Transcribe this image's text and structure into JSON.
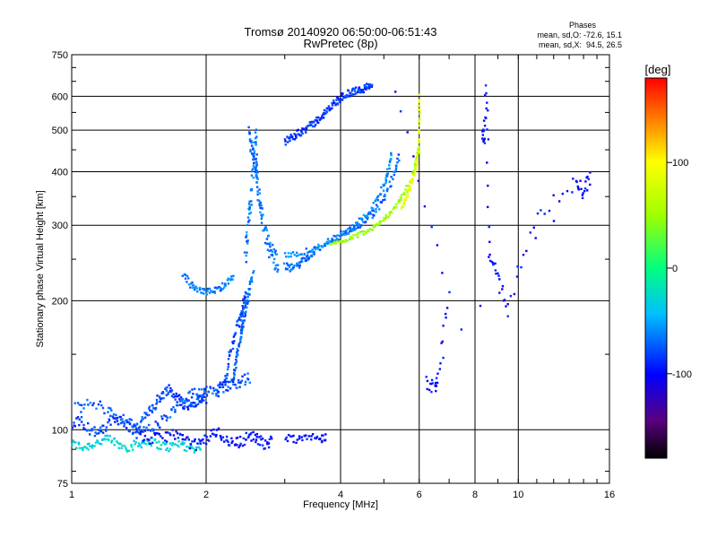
{
  "chart_data": {
    "type": "scatter",
    "title": "Tromsø 20140920 06:50:00-06:51:43",
    "subtitle": "RwPretec (8p)",
    "xlabel": "Frequency [MHz]",
    "ylabel": "Stationary phase Virtual Height [km]",
    "x_scale": "log",
    "y_scale": "log",
    "xlim": [
      1,
      16
    ],
    "ylim": [
      75,
      750
    ],
    "x_ticks": [
      1,
      2,
      4,
      6,
      8,
      10,
      16
    ],
    "x_tick_labels": [
      "1",
      "2",
      "4",
      "6",
      "8",
      "10",
      "16"
    ],
    "y_ticks": [
      75,
      100,
      200,
      300,
      400,
      500,
      600,
      750
    ],
    "y_tick_labels": [
      "75",
      "100",
      "200",
      "300",
      "400",
      "500",
      "600",
      "750"
    ],
    "grid": true,
    "stats": {
      "header": "Phases",
      "line_o": "mean, sd,O: -72.6, 15.1",
      "line_x": "mean, sd,X:  94.5, 26.5"
    },
    "colorbar": {
      "label": "[deg]",
      "range": [
        -180,
        180
      ],
      "ticks": [
        100,
        0,
        -100
      ],
      "tick_labels": [
        "100",
        "0",
        "-100"
      ]
    },
    "segments": [
      {
        "x": [
          1.0,
          1.05,
          1.1,
          1.16,
          1.22,
          1.28,
          1.35,
          1.42,
          1.5,
          1.58,
          1.66,
          1.75,
          1.85,
          1.95
        ],
        "y": [
          93,
          91,
          92,
          94,
          95,
          92,
          91,
          93,
          94,
          92,
          91,
          93,
          90,
          92
        ],
        "phase": -30,
        "jitter": 0.025
      },
      {
        "x": [
          1.0,
          1.05,
          1.1,
          1.15,
          1.2,
          1.25,
          1.3,
          1.35,
          1.4,
          1.45,
          1.5,
          1.55,
          1.6,
          1.65,
          1.7,
          1.75,
          1.8,
          1.85,
          1.9,
          1.95,
          2.0
        ],
        "y": [
          103,
          105,
          100,
          98,
          102,
          107,
          104,
          101,
          100,
          105,
          112,
          116,
          121,
          125,
          120,
          117,
          115,
          114,
          116,
          118,
          119
        ],
        "phase": -80,
        "jitter": 0.03
      },
      {
        "x": [
          1.02,
          1.1,
          1.2,
          1.3,
          1.4,
          1.5,
          1.6,
          1.7,
          1.8,
          1.9,
          2.0,
          2.1,
          2.2,
          2.3,
          2.4,
          2.5
        ],
        "y": [
          112,
          115,
          112,
          106,
          101,
          100,
          105,
          111,
          118,
          122,
          124,
          125,
          126,
          128,
          130,
          132
        ],
        "phase": -75,
        "jitter": 0.03
      },
      {
        "x": [
          1.4,
          1.5,
          1.6,
          1.7,
          1.8,
          1.9,
          2.0,
          2.1,
          2.2,
          2.3,
          2.4,
          2.5,
          2.6,
          2.7,
          2.8
        ],
        "y": [
          97,
          95,
          96,
          98,
          94,
          92,
          95,
          99,
          96,
          93,
          94,
          97,
          95,
          93,
          94
        ],
        "phase": -95,
        "jitter": 0.03
      },
      {
        "x": [
          2.1,
          2.2,
          2.25,
          2.3,
          2.35,
          2.4,
          2.42,
          2.45
        ],
        "y": [
          120,
          130,
          145,
          160,
          175,
          185,
          195,
          210
        ],
        "phase": -80,
        "jitter": 0.025
      },
      {
        "x": [
          2.3,
          2.32,
          2.35,
          2.38,
          2.4,
          2.42,
          2.45,
          2.48,
          2.5,
          2.55
        ],
        "y": [
          130,
          140,
          150,
          160,
          170,
          180,
          190,
          200,
          215,
          230
        ],
        "phase": -70,
        "jitter": 0.02
      },
      {
        "x": [
          1.78,
          1.85,
          1.92,
          2.0,
          2.08,
          2.15,
          2.22,
          2.3
        ],
        "y": [
          232,
          218,
          212,
          210,
          211,
          214,
          220,
          228
        ],
        "phase": -65,
        "jitter": 0.015
      },
      {
        "x": [
          2.45,
          2.48,
          2.5,
          2.52,
          2.55,
          2.58,
          2.6,
          2.62,
          2.65,
          2.7,
          2.75,
          2.8,
          2.85,
          2.9
        ],
        "y": [
          250,
          280,
          320,
          360,
          420,
          480,
          400,
          350,
          320,
          290,
          270,
          258,
          250,
          245
        ],
        "phase": -65,
        "jitter": 0.06
      },
      {
        "x": [
          2.5,
          2.52,
          2.55,
          2.58,
          2.6
        ],
        "y": [
          500,
          460,
          430,
          405,
          380
        ],
        "phase": -70,
        "jitter": 0.03
      },
      {
        "x": [
          3.0,
          3.1,
          3.2,
          3.3,
          3.4,
          3.5,
          3.6,
          3.7,
          3.8,
          3.9,
          4.0,
          4.1,
          4.2,
          4.3,
          4.4,
          4.5,
          4.6,
          4.7
        ],
        "y": [
          470,
          480,
          490,
          500,
          510,
          520,
          535,
          550,
          565,
          580,
          595,
          605,
          610,
          615,
          620,
          625,
          630,
          635
        ],
        "phase": -85,
        "jitter": 0.02
      },
      {
        "x": [
          3.0,
          3.1,
          3.2,
          3.3,
          3.4,
          3.5,
          3.7,
          3.9,
          4.1,
          4.3,
          4.5,
          4.7,
          4.9,
          5.1,
          5.3,
          5.4
        ],
        "y": [
          240,
          238,
          242,
          248,
          255,
          262,
          270,
          280,
          288,
          296,
          305,
          318,
          335,
          360,
          400,
          430
        ],
        "phase": -70,
        "jitter": 0.02
      },
      {
        "x": [
          3.0,
          3.2,
          3.4,
          3.6,
          3.8,
          4.0,
          4.2,
          4.4,
          4.6,
          4.8,
          5.0,
          5.1,
          5.2
        ],
        "y": [
          255,
          258,
          262,
          268,
          275,
          283,
          292,
          305,
          320,
          340,
          370,
          400,
          440
        ],
        "phase": -60,
        "jitter": 0.015
      },
      {
        "x": [
          3.8,
          4.0,
          4.2,
          4.4,
          4.6,
          4.8,
          5.0,
          5.2,
          5.4,
          5.6,
          5.8,
          5.9,
          6.0
        ],
        "y": [
          270,
          275,
          280,
          286,
          292,
          300,
          310,
          322,
          338,
          360,
          390,
          420,
          460
        ],
        "phase": 50,
        "jitter": 0.012
      },
      {
        "x": [
          5.5,
          5.6,
          5.7,
          5.8,
          5.9,
          6.0,
          6.0,
          6.0
        ],
        "y": [
          330,
          345,
          362,
          385,
          410,
          450,
          520,
          600
        ],
        "phase": 90,
        "jitter": 0.012
      },
      {
        "x": [
          3.0,
          3.2,
          3.4,
          3.6,
          3.7
        ],
        "y": [
          96,
          95,
          97,
          95,
          96
        ],
        "phase": -100,
        "jitter": 0.02
      },
      {
        "x": [
          8.3,
          8.4,
          8.5,
          8.6,
          9.0,
          9.5,
          11.0,
          13.5,
          14.0,
          14.5,
          6.2,
          6.5,
          6.6,
          7.0,
          5.3
        ],
        "y": [
          500,
          480,
          640,
          250,
          230,
          190,
          310,
          380,
          360,
          390,
          130,
          125,
          133,
          210,
          630
        ],
        "phase": -100,
        "jitter": 0.04
      }
    ]
  }
}
